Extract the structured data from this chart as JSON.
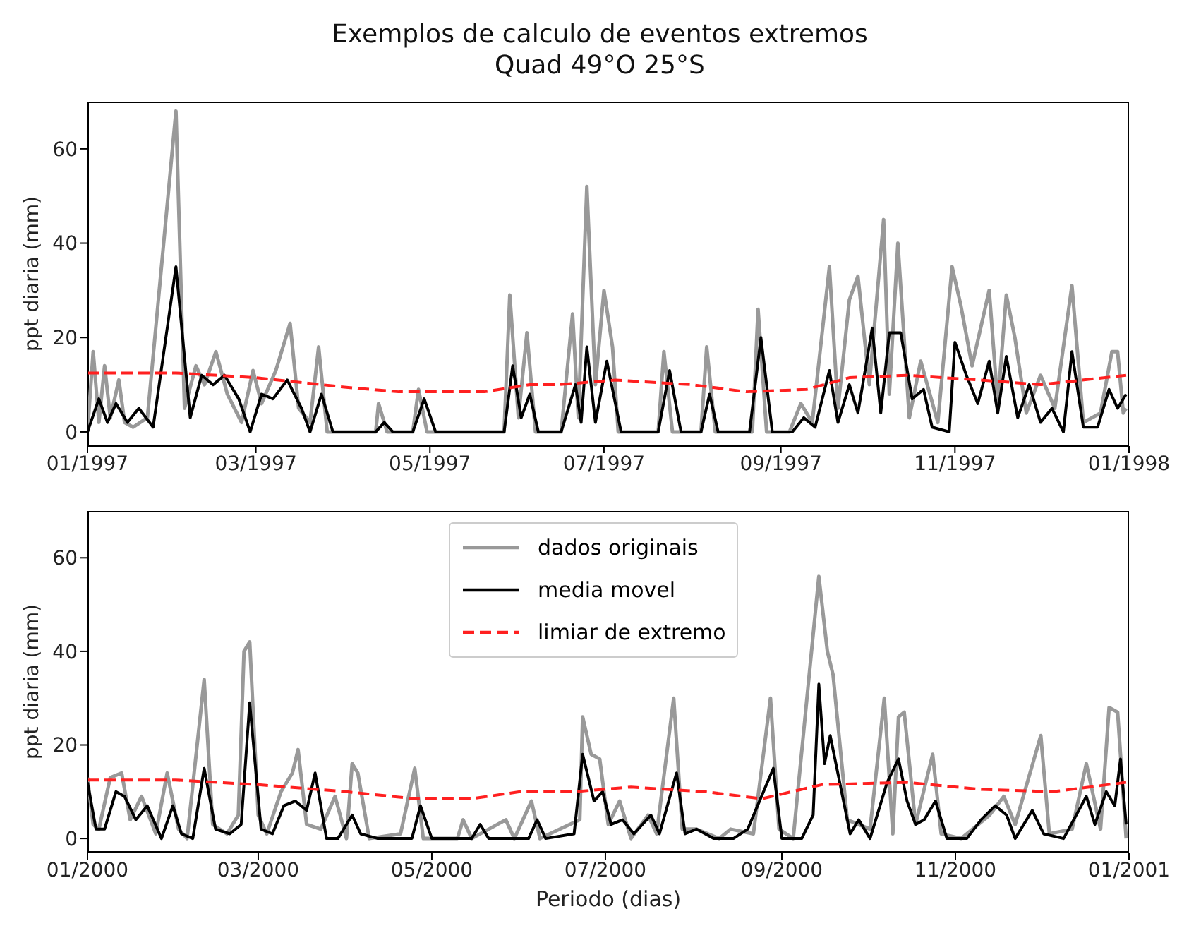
{
  "chart_data": [
    {
      "type": "line",
      "title": "Exemplos de calculo de eventos extremos",
      "subtitle": "Quad 49°O 25°S",
      "ylabel": "ppt diaria (mm)",
      "xlim": [
        "1997-01-01",
        "1998-01-01"
      ],
      "xticks": [
        {
          "value": "1997-01-01",
          "label": "01/1997"
        },
        {
          "value": "1997-03-01",
          "label": "03/1997"
        },
        {
          "value": "1997-05-01",
          "label": "05/1997"
        },
        {
          "value": "1997-07-01",
          "label": "07/1997"
        },
        {
          "value": "1997-09-01",
          "label": "09/1997"
        },
        {
          "value": "1997-11-01",
          "label": "11/1997"
        },
        {
          "value": "1998-01-01",
          "label": "01/1998"
        }
      ],
      "ylim": [
        -3,
        70
      ],
      "yticks": [
        0,
        20,
        40,
        60
      ],
      "series": [
        {
          "color": "#999999",
          "line_style": "solid",
          "x": [
            "1997-01-01",
            "1997-01-03",
            "1997-01-05",
            "1997-01-07",
            "1997-01-09",
            "1997-01-12",
            "1997-01-14",
            "1997-01-17",
            "1997-01-22",
            "1997-02-01",
            "1997-02-04",
            "1997-02-08",
            "1997-02-11",
            "1997-02-15",
            "1997-02-19",
            "1997-02-24",
            "1997-02-28",
            "1997-03-03",
            "1997-03-08",
            "1997-03-13",
            "1997-03-16",
            "1997-03-20",
            "1997-03-23",
            "1997-03-26",
            "1997-04-12",
            "1997-04-13",
            "1997-04-16",
            "1997-04-25",
            "1997-04-27",
            "1997-04-30",
            "1997-05-27",
            "1997-05-29",
            "1997-06-01",
            "1997-06-04",
            "1997-06-07",
            "1997-06-16",
            "1997-06-20",
            "1997-06-22",
            "1997-06-25",
            "1997-06-28",
            "1997-07-01",
            "1997-07-04",
            "1997-07-06",
            "1997-07-20",
            "1997-07-22",
            "1997-07-25",
            "1997-08-04",
            "1997-08-06",
            "1997-08-09",
            "1997-08-22",
            "1997-08-24",
            "1997-08-27",
            "1997-09-04",
            "1997-09-08",
            "1997-09-12",
            "1997-09-18",
            "1997-09-21",
            "1997-09-25",
            "1997-09-28",
            "1997-10-02",
            "1997-10-07",
            "1997-10-09",
            "1997-10-12",
            "1997-10-16",
            "1997-10-20",
            "1997-10-26",
            "1997-10-31",
            "1997-11-03",
            "1997-11-07",
            "1997-11-13",
            "1997-11-16",
            "1997-11-19",
            "1997-11-22",
            "1997-11-26",
            "1997-12-01",
            "1997-12-06",
            "1997-12-12",
            "1997-12-16",
            "1997-12-22",
            "1997-12-26",
            "1997-12-28",
            "1997-12-30",
            "1997-12-31"
          ],
          "values": [
            0,
            17,
            2,
            14,
            3,
            11,
            2,
            1,
            3,
            68,
            5,
            14,
            10,
            17,
            8,
            2,
            13,
            6,
            13,
            23,
            5,
            2,
            18,
            0,
            0,
            6,
            0,
            0,
            9,
            0,
            0,
            29,
            3,
            21,
            0,
            0,
            25,
            3,
            52,
            10,
            30,
            18,
            0,
            0,
            17,
            0,
            0,
            18,
            0,
            0,
            26,
            0,
            0,
            6,
            2,
            35,
            5,
            28,
            33,
            10,
            45,
            8,
            40,
            3,
            15,
            2,
            35,
            27,
            14,
            30,
            6,
            29,
            20,
            4,
            12,
            5,
            31,
            2,
            4,
            17,
            17,
            4,
            5
          ]
        },
        {
          "color": "#000000",
          "line_style": "solid",
          "x": [
            "1997-01-01",
            "1997-01-05",
            "1997-01-08",
            "1997-01-11",
            "1997-01-15",
            "1997-01-19",
            "1997-01-24",
            "1997-02-01",
            "1997-02-06",
            "1997-02-10",
            "1997-02-14",
            "1997-02-18",
            "1997-02-23",
            "1997-02-27",
            "1997-03-03",
            "1997-03-07",
            "1997-03-12",
            "1997-03-17",
            "1997-03-20",
            "1997-03-24",
            "1997-03-28",
            "1997-04-12",
            "1997-04-15",
            "1997-04-18",
            "1997-04-25",
            "1997-04-29",
            "1997-05-03",
            "1997-05-27",
            "1997-05-30",
            "1997-06-02",
            "1997-06-05",
            "1997-06-08",
            "1997-06-16",
            "1997-06-21",
            "1997-06-23",
            "1997-06-25",
            "1997-06-28",
            "1997-07-02",
            "1997-07-07",
            "1997-07-20",
            "1997-07-24",
            "1997-07-28",
            "1997-08-04",
            "1997-08-07",
            "1997-08-10",
            "1997-08-21",
            "1997-08-25",
            "1997-08-29",
            "1997-09-05",
            "1997-09-09",
            "1997-09-13",
            "1997-09-18",
            "1997-09-21",
            "1997-09-25",
            "1997-09-28",
            "1997-10-03",
            "1997-10-06",
            "1997-10-09",
            "1997-10-13",
            "1997-10-17",
            "1997-10-21",
            "1997-10-24",
            "1997-10-30",
            "1997-11-01",
            "1997-11-05",
            "1997-11-09",
            "1997-11-13",
            "1997-11-16",
            "1997-11-19",
            "1997-11-23",
            "1997-11-27",
            "1997-12-01",
            "1997-12-05",
            "1997-12-09",
            "1997-12-12",
            "1997-12-16",
            "1997-12-21",
            "1997-12-25",
            "1997-12-28",
            "1997-12-31"
          ],
          "values": [
            0,
            7,
            2,
            6,
            2,
            5,
            1,
            35,
            3,
            12,
            10,
            12,
            7,
            0,
            8,
            7,
            11,
            5,
            0,
            8,
            0,
            0,
            2,
            0,
            0,
            7,
            0,
            0,
            14,
            3,
            8,
            0,
            0,
            10,
            2,
            18,
            2,
            15,
            0,
            0,
            13,
            0,
            0,
            8,
            0,
            0,
            20,
            0,
            0,
            3,
            1,
            13,
            2,
            10,
            4,
            22,
            4,
            21,
            21,
            7,
            9,
            1,
            0,
            19,
            12,
            6,
            15,
            4,
            16,
            3,
            10,
            2,
            5,
            0,
            17,
            1,
            1,
            9,
            5,
            8
          ]
        },
        {
          "color": "#ff2020",
          "line_style": "dashed",
          "x": [
            "1997-01-01",
            "1997-02-01",
            "1997-03-01",
            "1997-04-01",
            "1997-04-20",
            "1997-05-20",
            "1997-06-05",
            "1997-06-15",
            "1997-07-05",
            "1997-08-01",
            "1997-08-20",
            "1997-09-10",
            "1997-09-25",
            "1997-10-15",
            "1997-11-10",
            "1997-12-01",
            "1997-12-31"
          ],
          "values": [
            12.5,
            12.5,
            11.5,
            9.5,
            8.5,
            8.5,
            10,
            10,
            11,
            10,
            8.5,
            9,
            11.5,
            12,
            11,
            10,
            12
          ]
        }
      ]
    },
    {
      "type": "line",
      "ylabel": "ppt diaria (mm)",
      "xlabel": "Periodo (dias)",
      "legend": "top",
      "xlim": [
        "2000-01-01",
        "2001-01-01"
      ],
      "xticks": [
        {
          "value": "2000-01-01",
          "label": "01/2000"
        },
        {
          "value": "2000-03-01",
          "label": "03/2000"
        },
        {
          "value": "2000-05-01",
          "label": "05/2000"
        },
        {
          "value": "2000-07-01",
          "label": "07/2000"
        },
        {
          "value": "2000-09-01",
          "label": "09/2000"
        },
        {
          "value": "2000-11-01",
          "label": "11/2000"
        },
        {
          "value": "2001-01-01",
          "label": "01/2001"
        }
      ],
      "ylim": [
        -3,
        70
      ],
      "yticks": [
        0,
        20,
        40,
        60
      ],
      "series": [
        {
          "name": "dados originais",
          "color": "#999999",
          "line_style": "solid",
          "x": [
            "2000-01-01",
            "2000-01-03",
            "2000-01-05",
            "2000-01-09",
            "2000-01-13",
            "2000-01-16",
            "2000-01-20",
            "2000-01-25",
            "2000-01-29",
            "2000-02-02",
            "2000-02-05",
            "2000-02-11",
            "2000-02-14",
            "2000-02-19",
            "2000-02-23",
            "2000-02-25",
            "2000-02-27",
            "2000-03-01",
            "2000-03-04",
            "2000-03-09",
            "2000-03-13",
            "2000-03-15",
            "2000-03-18",
            "2000-03-23",
            "2000-03-28",
            "2000-04-01",
            "2000-04-03",
            "2000-04-05",
            "2000-04-09",
            "2000-04-20",
            "2000-04-25",
            "2000-04-28",
            "2000-05-10",
            "2000-05-12",
            "2000-05-15",
            "2000-05-27",
            "2000-05-30",
            "2000-06-05",
            "2000-06-08",
            "2000-06-22",
            "2000-06-23",
            "2000-06-26",
            "2000-06-29",
            "2000-07-02",
            "2000-07-06",
            "2000-07-10",
            "2000-07-16",
            "2000-07-19",
            "2000-07-25",
            "2000-07-28",
            "2000-08-02",
            "2000-08-10",
            "2000-08-14",
            "2000-08-22",
            "2000-08-28",
            "2000-08-31",
            "2000-09-05",
            "2000-09-14",
            "2000-09-17",
            "2000-09-19",
            "2000-09-24",
            "2000-10-02",
            "2000-10-07",
            "2000-10-10",
            "2000-10-12",
            "2000-10-14",
            "2000-10-18",
            "2000-10-24",
            "2000-10-27",
            "2000-11-03",
            "2000-11-13",
            "2000-11-18",
            "2000-11-22",
            "2000-12-01",
            "2000-12-04",
            "2000-12-12",
            "2000-12-17",
            "2000-12-22",
            "2000-12-25",
            "2000-12-28",
            "2000-12-31"
          ],
          "values": [
            13,
            3,
            2,
            13,
            14,
            4,
            9,
            1,
            14,
            2,
            0,
            34,
            3,
            1,
            5,
            40,
            42,
            5,
            1,
            10,
            14,
            19,
            3,
            2,
            9,
            0,
            16,
            14,
            0,
            1,
            15,
            0,
            0,
            4,
            0,
            4,
            0,
            8,
            0,
            4,
            26,
            18,
            17,
            3,
            8,
            0,
            5,
            1,
            30,
            2,
            2,
            0,
            2,
            1,
            30,
            2,
            0,
            56,
            40,
            35,
            4,
            2,
            30,
            1,
            26,
            27,
            3,
            18,
            1,
            0,
            5,
            9,
            3,
            22,
            1,
            2,
            16,
            2,
            28,
            27,
            0
          ]
        },
        {
          "name": "media movel",
          "color": "#000000",
          "line_style": "solid",
          "x": [
            "2000-01-01",
            "2000-01-04",
            "2000-01-07",
            "2000-01-11",
            "2000-01-14",
            "2000-01-18",
            "2000-01-22",
            "2000-01-27",
            "2000-01-31",
            "2000-02-03",
            "2000-02-07",
            "2000-02-11",
            "2000-02-15",
            "2000-02-20",
            "2000-02-24",
            "2000-02-27",
            "2000-03-02",
            "2000-03-06",
            "2000-03-10",
            "2000-03-14",
            "2000-03-18",
            "2000-03-21",
            "2000-03-25",
            "2000-03-29",
            "2000-04-03",
            "2000-04-06",
            "2000-04-12",
            "2000-04-24",
            "2000-04-27",
            "2000-05-01",
            "2000-05-15",
            "2000-05-18",
            "2000-05-21",
            "2000-06-04",
            "2000-06-07",
            "2000-06-10",
            "2000-06-20",
            "2000-06-23",
            "2000-06-27",
            "2000-06-30",
            "2000-07-03",
            "2000-07-07",
            "2000-07-11",
            "2000-07-17",
            "2000-07-20",
            "2000-07-26",
            "2000-07-29",
            "2000-08-02",
            "2000-08-08",
            "2000-08-15",
            "2000-08-20",
            "2000-08-29",
            "2000-09-01",
            "2000-09-08",
            "2000-09-12",
            "2000-09-14",
            "2000-09-16",
            "2000-09-18",
            "2000-09-21",
            "2000-09-25",
            "2000-09-28",
            "2000-10-02",
            "2000-10-08",
            "2000-10-12",
            "2000-10-15",
            "2000-10-18",
            "2000-10-21",
            "2000-10-25",
            "2000-10-29",
            "2000-11-05",
            "2000-11-10",
            "2000-11-15",
            "2000-11-19",
            "2000-11-22",
            "2000-11-28",
            "2000-12-02",
            "2000-12-09",
            "2000-12-17",
            "2000-12-20",
            "2000-12-24",
            "2000-12-27",
            "2000-12-29",
            "2000-12-31"
          ],
          "values": [
            12,
            2,
            2,
            10,
            9,
            4,
            7,
            0,
            7,
            1,
            0,
            15,
            2,
            1,
            3,
            29,
            2,
            1,
            7,
            8,
            6,
            14,
            0,
            0,
            5,
            1,
            0,
            0,
            7,
            0,
            0,
            3,
            0,
            0,
            4,
            0,
            1,
            18,
            8,
            10,
            3,
            4,
            1,
            5,
            1,
            14,
            1,
            2,
            0,
            0,
            2,
            15,
            0,
            0,
            5,
            33,
            16,
            22,
            13,
            1,
            4,
            0,
            12,
            17,
            8,
            3,
            4,
            8,
            0,
            0,
            4,
            7,
            5,
            0,
            6,
            1,
            0,
            9,
            3,
            10,
            7,
            17,
            3
          ]
        },
        {
          "name": "limiar de extremo",
          "color": "#ff2020",
          "line_style": "dashed",
          "x": [
            "2000-01-01",
            "2000-02-01",
            "2000-03-01",
            "2000-04-01",
            "2000-04-25",
            "2000-05-15",
            "2000-06-01",
            "2000-06-20",
            "2000-07-10",
            "2000-08-05",
            "2000-08-25",
            "2000-09-15",
            "2000-10-15",
            "2000-11-10",
            "2000-12-05",
            "2000-12-31"
          ],
          "values": [
            12.5,
            12.5,
            11.5,
            10,
            8.5,
            8.5,
            10,
            10,
            11,
            10,
            8.5,
            11.5,
            12,
            10.5,
            10,
            12
          ]
        }
      ]
    }
  ]
}
